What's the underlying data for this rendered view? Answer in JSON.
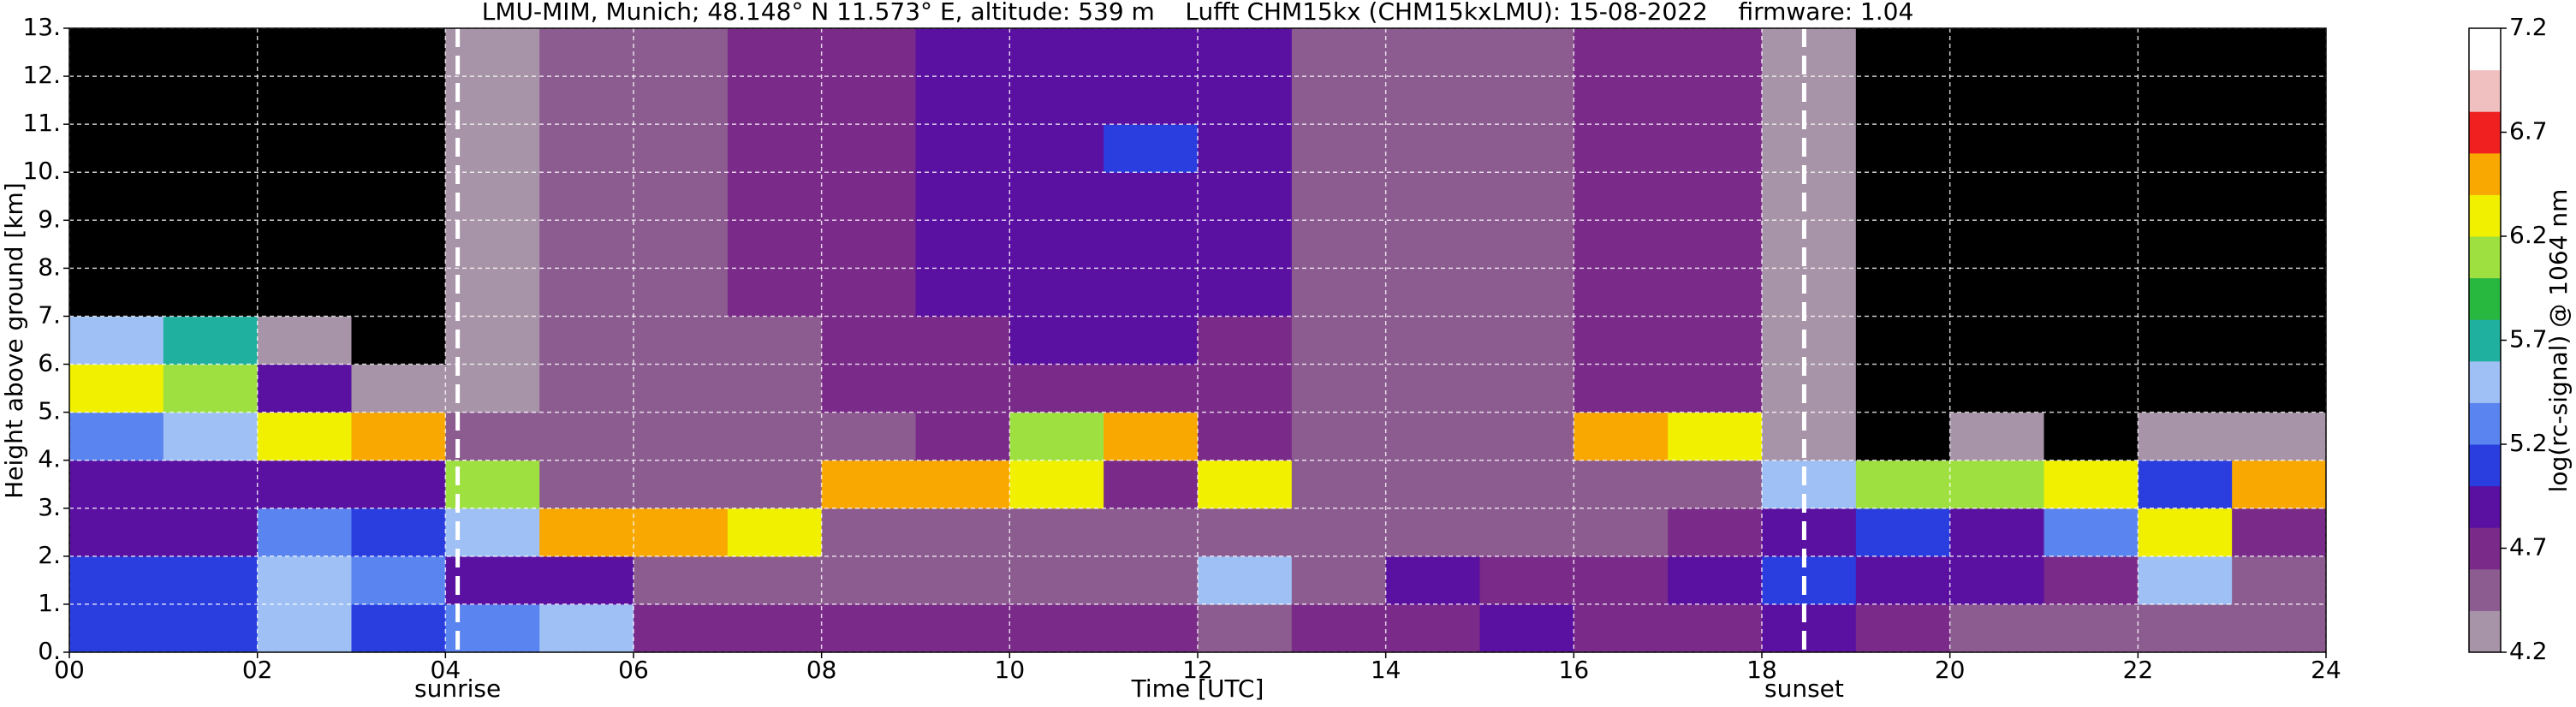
{
  "chart_data": {
    "type": "heatmap",
    "title": "LMU-MIM, Munich; 48.148° N 11.573° E, altitude: 539 m    Lufft CHM15kx (CHM15kxLMU): 15-08-2022    firmware: 1.04",
    "xlabel": "Time [UTC]",
    "ylabel": "Height above ground [km]",
    "colorbar_label": "log(rc-signal) @ 1064 nm",
    "x_bins": [
      0,
      1,
      2,
      3,
      4,
      5,
      6,
      7,
      8,
      9,
      10,
      11,
      12,
      13,
      14,
      15,
      16,
      17,
      18,
      19,
      20,
      21,
      22,
      23,
      24
    ],
    "y_bins": [
      0,
      1,
      2,
      3,
      4,
      5,
      6,
      7,
      8,
      9,
      10,
      11,
      12,
      13
    ],
    "values": [
      [
        5.1,
        5.1,
        4.9,
        5.0,
        5.3,
        6.2,
        5.6,
        4.0,
        4.0,
        4.0,
        4.0,
        4.0,
        4.0
      ],
      [
        5.1,
        5.1,
        4.9,
        5.0,
        5.5,
        6.0,
        5.8,
        4.1,
        4.0,
        4.0,
        4.0,
        4.0,
        4.0
      ],
      [
        5.4,
        5.6,
        5.2,
        5.0,
        6.3,
        5.0,
        4.3,
        4.1,
        4.0,
        4.0,
        4.0,
        4.0,
        4.0
      ],
      [
        5.1,
        5.2,
        5.1,
        5.0,
        6.6,
        4.3,
        4.1,
        4.1,
        4.0,
        4.0,
        4.0,
        4.0,
        4.0
      ],
      [
        5.3,
        5.0,
        5.6,
        6.0,
        4.4,
        4.3,
        4.2,
        4.2,
        4.2,
        4.2,
        4.2,
        4.2,
        4.2
      ],
      [
        5.4,
        5.0,
        6.5,
        4.5,
        4.4,
        4.4,
        4.4,
        4.4,
        4.4,
        4.4,
        4.4,
        4.4,
        4.4
      ],
      [
        4.7,
        4.6,
        6.4,
        4.5,
        4.5,
        4.5,
        4.5,
        4.6,
        4.6,
        4.6,
        4.6,
        4.6,
        4.6
      ],
      [
        4.7,
        4.6,
        6.3,
        4.6,
        4.6,
        4.6,
        4.6,
        4.7,
        4.7,
        4.7,
        4.7,
        4.7,
        4.7
      ],
      [
        4.7,
        4.6,
        4.6,
        6.4,
        4.6,
        4.7,
        4.7,
        4.8,
        4.8,
        4.8,
        4.8,
        4.8,
        4.8
      ],
      [
        4.7,
        4.6,
        4.6,
        6.5,
        4.7,
        4.7,
        4.8,
        4.9,
        4.9,
        4.9,
        4.9,
        4.9,
        4.9
      ],
      [
        4.7,
        4.6,
        4.6,
        6.3,
        6.0,
        4.8,
        4.9,
        5.0,
        5.0,
        5.0,
        5.0,
        5.0,
        5.0
      ],
      [
        4.7,
        4.6,
        4.6,
        4.7,
        6.5,
        4.8,
        4.9,
        5.0,
        5.0,
        5.0,
        5.1,
        5.0,
        5.0
      ],
      [
        4.6,
        5.5,
        4.6,
        6.3,
        4.7,
        4.8,
        4.8,
        4.9,
        4.9,
        4.9,
        4.9,
        4.9,
        4.9
      ],
      [
        4.7,
        4.6,
        4.6,
        4.6,
        4.6,
        4.6,
        4.6,
        4.6,
        4.6,
        4.6,
        4.6,
        4.6,
        4.6
      ],
      [
        4.8,
        4.9,
        4.6,
        4.6,
        4.6,
        4.5,
        4.5,
        4.5,
        4.5,
        4.5,
        4.5,
        4.5,
        4.5
      ],
      [
        4.9,
        4.8,
        4.6,
        4.6,
        4.6,
        4.5,
        4.5,
        4.5,
        4.5,
        4.5,
        4.5,
        4.5,
        4.5
      ],
      [
        4.8,
        4.7,
        4.6,
        4.6,
        6.4,
        4.7,
        4.7,
        4.8,
        4.8,
        4.8,
        4.8,
        4.8,
        4.8
      ],
      [
        4.8,
        5.0,
        4.7,
        4.6,
        6.3,
        4.7,
        4.7,
        4.8,
        4.8,
        4.8,
        4.8,
        4.8,
        4.8
      ],
      [
        4.9,
        5.1,
        5.0,
        5.5,
        4.3,
        4.2,
        4.2,
        4.2,
        4.2,
        4.2,
        4.2,
        4.2,
        4.2
      ],
      [
        4.7,
        5.0,
        5.1,
        6.0,
        4.1,
        4.0,
        4.0,
        4.0,
        4.0,
        4.0,
        4.0,
        4.0,
        4.0
      ],
      [
        4.6,
        4.9,
        5.0,
        6.1,
        4.2,
        4.0,
        4.0,
        4.0,
        4.0,
        4.0,
        4.0,
        4.0,
        4.0
      ],
      [
        4.6,
        4.7,
        5.2,
        6.2,
        4.1,
        4.0,
        4.0,
        4.0,
        4.0,
        4.0,
        4.0,
        4.0,
        4.0
      ],
      [
        4.6,
        5.4,
        6.3,
        5.1,
        4.2,
        4.0,
        4.0,
        4.0,
        4.0,
        4.0,
        4.0,
        4.0,
        4.0
      ],
      [
        4.6,
        4.6,
        4.7,
        6.5,
        4.2,
        4.0,
        4.0,
        4.0,
        4.0,
        4.0,
        4.0,
        4.0,
        4.0
      ]
    ],
    "xlim": [
      0,
      24
    ],
    "xticks": [
      {
        "value": 0,
        "label": "00"
      },
      {
        "value": 2,
        "label": "02"
      },
      {
        "value": 4,
        "label": "04"
      },
      {
        "value": 6,
        "label": "06"
      },
      {
        "value": 8,
        "label": "08"
      },
      {
        "value": 10,
        "label": "10"
      },
      {
        "value": 12,
        "label": "12"
      },
      {
        "value": 14,
        "label": "14"
      },
      {
        "value": 16,
        "label": "16"
      },
      {
        "value": 18,
        "label": "18"
      },
      {
        "value": 20,
        "label": "20"
      },
      {
        "value": 22,
        "label": "22"
      },
      {
        "value": 24,
        "label": "24"
      }
    ],
    "ylim": [
      0,
      13
    ],
    "yticks": [
      {
        "value": 0,
        "label": "0."
      },
      {
        "value": 1,
        "label": "1."
      },
      {
        "value": 2,
        "label": "2."
      },
      {
        "value": 3,
        "label": "3."
      },
      {
        "value": 4,
        "label": "4."
      },
      {
        "value": 5,
        "label": "5."
      },
      {
        "value": 6,
        "label": "6."
      },
      {
        "value": 7,
        "label": "7."
      },
      {
        "value": 8,
        "label": "8."
      },
      {
        "value": 9,
        "label": "9."
      },
      {
        "value": 10,
        "label": "10."
      },
      {
        "value": 11,
        "label": "11."
      },
      {
        "value": 12,
        "label": "12."
      },
      {
        "value": 13,
        "label": "13."
      }
    ],
    "clim": [
      4.2,
      7.2
    ],
    "cticks": [
      4.2,
      4.7,
      5.2,
      5.7,
      6.2,
      6.7,
      7.2
    ],
    "colormap": [
      "#a894a8",
      "#8c5c90",
      "#7a2a88",
      "#5a10a0",
      "#2a3ee0",
      "#5a84f0",
      "#9ec0f4",
      "#20b0a0",
      "#28b840",
      "#9ee040",
      "#f0f000",
      "#f8a800",
      "#f02020",
      "#f0c0c0",
      "#ffffff"
    ],
    "under_color": "#000000",
    "grid": true,
    "annotations": [
      {
        "text": "sunrise",
        "x": 4.13
      },
      {
        "text": "sunset",
        "x": 18.45
      }
    ]
  }
}
